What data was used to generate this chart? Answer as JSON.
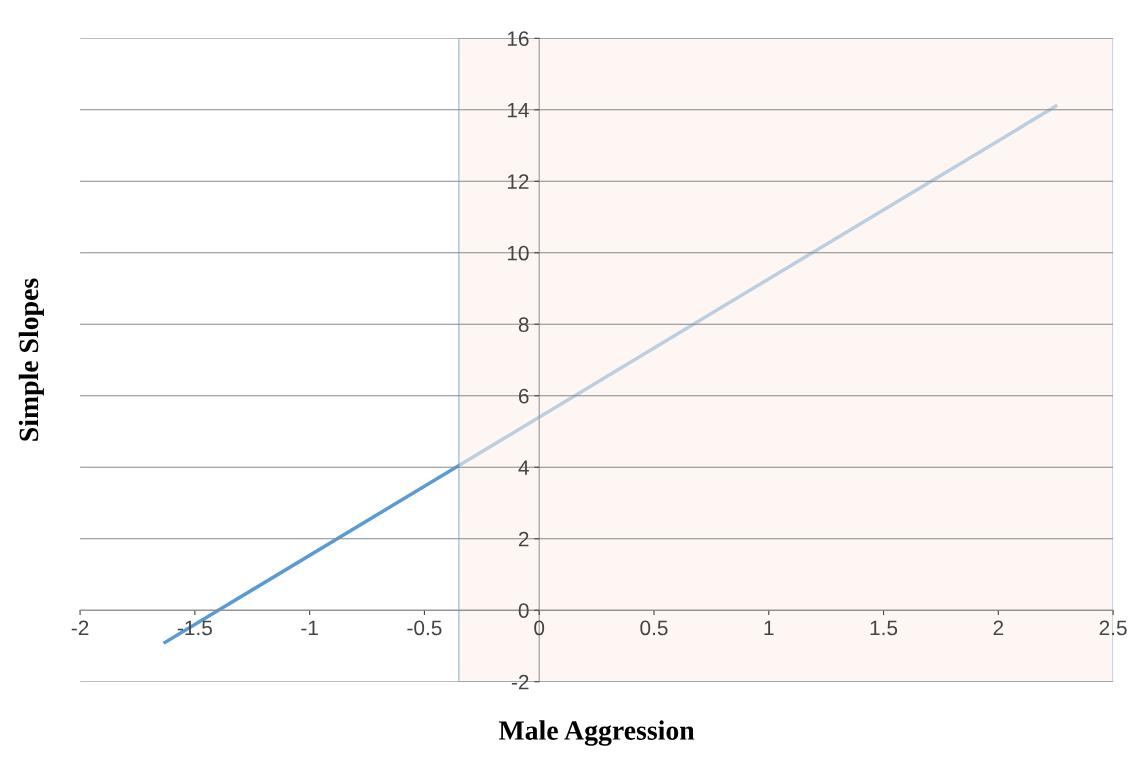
{
  "chart_data": {
    "type": "line",
    "xlabel": "Male Aggression",
    "ylabel": "Simple Slopes",
    "x": [
      -1.63,
      2.25
    ],
    "series": [
      {
        "color": "#5b9bd5",
        "values": [
          -0.9,
          14.1
        ]
      }
    ],
    "xlim": [
      -2,
      2.5
    ],
    "xticks": [
      -2,
      -1.5,
      -1,
      -0.5,
      0,
      0.5,
      1,
      1.5,
      2,
      2.5
    ],
    "ylim": [
      -2,
      16
    ],
    "yticks": [
      -2,
      0,
      2,
      4,
      6,
      8,
      10,
      12,
      14,
      16
    ],
    "grid": "y",
    "legend": false,
    "marker": "none",
    "line_style": "solid",
    "bands": [
      {
        "axis": "x",
        "from": -0.35,
        "to": 2.5,
        "color": "#fdf1ea"
      }
    ]
  }
}
